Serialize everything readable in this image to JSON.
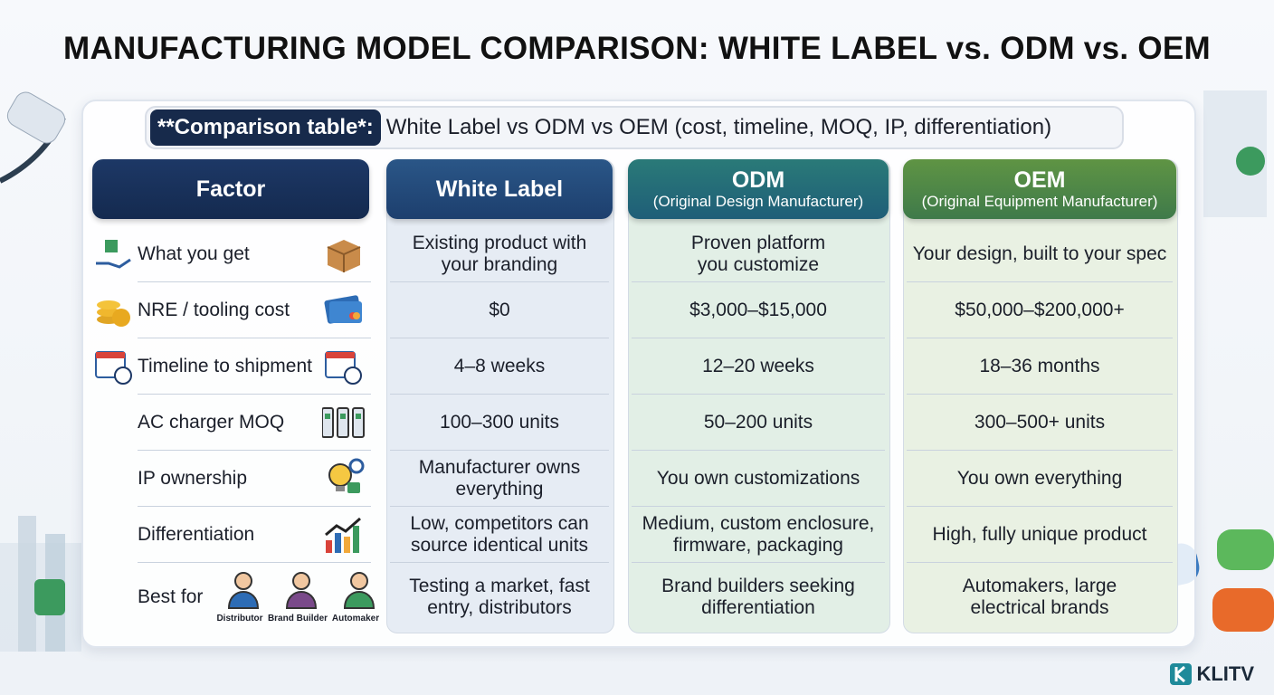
{
  "title": "MANUFACTURING MODEL COMPARISON: WHITE LABEL vs. ODM vs. OEM",
  "subtitle": {
    "badge": "**Comparison table*:",
    "text": "White Label vs ODM vs OEM (cost, timeline, MOQ, IP, differentiation)"
  },
  "table": {
    "headers": [
      {
        "name": "Factor"
      },
      {
        "name": "White Label"
      },
      {
        "name": "ODM",
        "sub": "(Original Design Manufacturer)"
      },
      {
        "name": "OEM",
        "sub": "(Original Equipment Manufacturer)"
      }
    ],
    "rows": [
      {
        "factor": "What you get",
        "cells": [
          [
            "Existing product with",
            "your branding"
          ],
          [
            "Proven platform",
            "you customize"
          ],
          [
            "Your design, built to your spec"
          ]
        ]
      },
      {
        "factor": "NRE / tooling cost",
        "cells": [
          [
            "$0"
          ],
          [
            "$3,000–$15,000"
          ],
          [
            "$50,000–$200,000+"
          ]
        ]
      },
      {
        "factor": "Timeline to shipment",
        "cells": [
          [
            "4–8 weeks"
          ],
          [
            "12–20 weeks"
          ],
          [
            "18–36 months"
          ]
        ]
      },
      {
        "factor": "AC charger MOQ",
        "cells": [
          [
            "100–300 units"
          ],
          [
            "50–200 units"
          ],
          [
            "300–500+ units"
          ]
        ]
      },
      {
        "factor": "IP ownership",
        "cells": [
          [
            "Manufacturer owns",
            "everything"
          ],
          [
            "You own customizations"
          ],
          [
            "You own everything"
          ]
        ]
      },
      {
        "factor": "Differentiation",
        "cells": [
          [
            "Low, competitors can",
            "source identical units"
          ],
          [
            "Medium, custom enclosure,",
            "firmware, packaging"
          ],
          [
            "High, fully unique product"
          ]
        ]
      },
      {
        "factor": "Best for",
        "cells": [
          [
            "Testing a market, fast",
            "entry, distributors"
          ],
          [
            "Brand builders seeking",
            "differentiation"
          ],
          [
            "Automakers, large",
            "electrical brands"
          ]
        ]
      }
    ],
    "best_for_icons": [
      "Distributor",
      "Brand Builder",
      "Automaker"
    ]
  },
  "brand": "KLITV"
}
